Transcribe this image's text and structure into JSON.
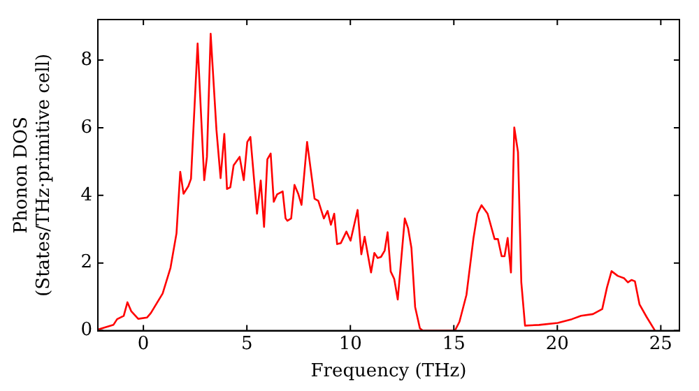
{
  "chart_data": {
    "type": "line",
    "xlabel": "Frequency (THz)",
    "ylabel": "Phonon DOS\n(States/THz·primitive cell)",
    "xlim": [
      -2.2,
      25.9
    ],
    "xticks": [
      0,
      5,
      10,
      15,
      20,
      25
    ],
    "ylim": [
      0,
      9.2
    ],
    "yticks": [
      0,
      2,
      4,
      6,
      8
    ],
    "grid": false,
    "legend": false,
    "marker": "none",
    "line_style": "solid",
    "series": [
      {
        "color": "#ff0000",
        "x": [
          -2.17,
          -1.45,
          -1.27,
          -0.95,
          -0.77,
          -0.59,
          -0.25,
          0.18,
          0.36,
          0.93,
          1.31,
          1.6,
          1.78,
          1.94,
          2.17,
          2.3,
          2.62,
          2.94,
          3.07,
          3.25,
          3.53,
          3.73,
          3.91,
          4.04,
          4.2,
          4.36,
          4.65,
          4.85,
          5.02,
          5.17,
          5.49,
          5.67,
          5.83,
          5.99,
          6.15,
          6.3,
          6.46,
          6.73,
          6.87,
          6.96,
          7.14,
          7.3,
          7.48,
          7.64,
          7.91,
          8.27,
          8.45,
          8.72,
          8.9,
          9.06,
          9.22,
          9.36,
          9.54,
          9.81,
          10.01,
          10.35,
          10.53,
          10.69,
          11.0,
          11.16,
          11.32,
          11.48,
          11.66,
          11.8,
          11.95,
          12.12,
          12.29,
          12.63,
          12.79,
          12.95,
          13.13,
          13.36,
          13.5,
          15.05,
          15.27,
          15.61,
          15.95,
          16.14,
          16.34,
          16.63,
          16.97,
          17.13,
          17.31,
          17.45,
          17.6,
          17.76,
          17.92,
          18.1,
          18.26,
          18.44,
          19.12,
          20.02,
          20.7,
          21.15,
          21.72,
          22.17,
          22.4,
          22.62,
          22.92,
          23.23,
          23.41,
          23.59,
          23.75,
          23.97,
          24.31,
          24.72
        ],
        "values": [
          0.04,
          0.17,
          0.34,
          0.44,
          0.84,
          0.58,
          0.35,
          0.39,
          0.52,
          1.1,
          1.86,
          2.88,
          4.7,
          4.05,
          4.27,
          4.49,
          8.49,
          4.45,
          5.14,
          8.78,
          5.94,
          4.51,
          5.82,
          4.19,
          4.24,
          4.89,
          5.14,
          4.45,
          5.58,
          5.73,
          3.46,
          4.44,
          3.07,
          5.07,
          5.24,
          3.81,
          4.03,
          4.12,
          3.32,
          3.25,
          3.32,
          4.31,
          4.05,
          3.72,
          5.58,
          3.9,
          3.84,
          3.32,
          3.54,
          3.13,
          3.46,
          2.56,
          2.59,
          2.93,
          2.66,
          3.57,
          2.26,
          2.78,
          1.72,
          2.3,
          2.15,
          2.18,
          2.37,
          2.91,
          1.75,
          1.53,
          0.92,
          3.32,
          3.03,
          2.45,
          0.7,
          0.07,
          0,
          0,
          0.26,
          1.06,
          2.74,
          3.46,
          3.71,
          3.46,
          2.71,
          2.71,
          2.2,
          2.2,
          2.74,
          1.72,
          6.01,
          5.28,
          1.43,
          0.15,
          0.17,
          0.23,
          0.34,
          0.44,
          0.49,
          0.64,
          1.28,
          1.76,
          1.62,
          1.55,
          1.43,
          1.5,
          1.46,
          0.78,
          0.41,
          0
        ]
      }
    ]
  }
}
